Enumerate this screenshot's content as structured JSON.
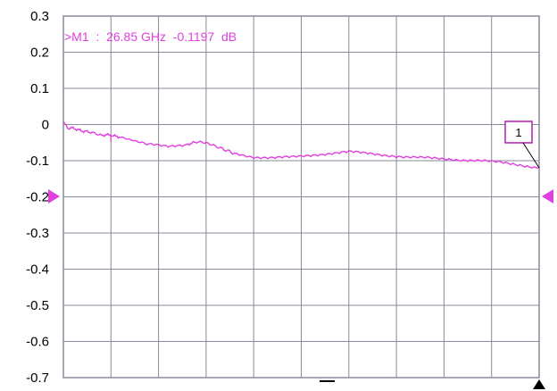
{
  "chart_data": {
    "type": "line",
    "title": "",
    "xlabel": "",
    "ylabel": "",
    "ylim": [
      -0.7,
      0.3
    ],
    "y_ticks": [
      "0.3",
      "0.2",
      "0.1",
      "0",
      "-0.1",
      "-0.2",
      "-0.3",
      "-0.4",
      "-0.5",
      "-0.6",
      "-0.7"
    ],
    "x_divisions": 10,
    "grid": true,
    "reference_level": -0.2,
    "marker_readout": ">M1  :  26.85 GHz  -0.1197  dB",
    "markers": [
      {
        "label": "1",
        "x": 1.0,
        "y": -0.1197
      }
    ],
    "series": [
      {
        "color": "#e040e0",
        "x": [
          0.0,
          0.01,
          0.02,
          0.04,
          0.06,
          0.08,
          0.09,
          0.1,
          0.12,
          0.15,
          0.18,
          0.22,
          0.26,
          0.28,
          0.3,
          0.33,
          0.36,
          0.4,
          0.44,
          0.48,
          0.52,
          0.56,
          0.6,
          0.64,
          0.68,
          0.72,
          0.76,
          0.8,
          0.84,
          0.88,
          0.92,
          0.96,
          1.0
        ],
        "y": [
          0.005,
          -0.01,
          -0.01,
          -0.018,
          -0.022,
          -0.03,
          -0.028,
          -0.03,
          -0.035,
          -0.045,
          -0.055,
          -0.06,
          -0.055,
          -0.048,
          -0.05,
          -0.065,
          -0.08,
          -0.09,
          -0.092,
          -0.09,
          -0.085,
          -0.08,
          -0.075,
          -0.08,
          -0.085,
          -0.09,
          -0.092,
          -0.095,
          -0.098,
          -0.1,
          -0.105,
          -0.112,
          -0.1197
        ]
      }
    ]
  },
  "colors": {
    "trace": "#e040e0",
    "grid": "#8a8a9a",
    "frame": "#000000",
    "marker_box": "#b020b0"
  }
}
